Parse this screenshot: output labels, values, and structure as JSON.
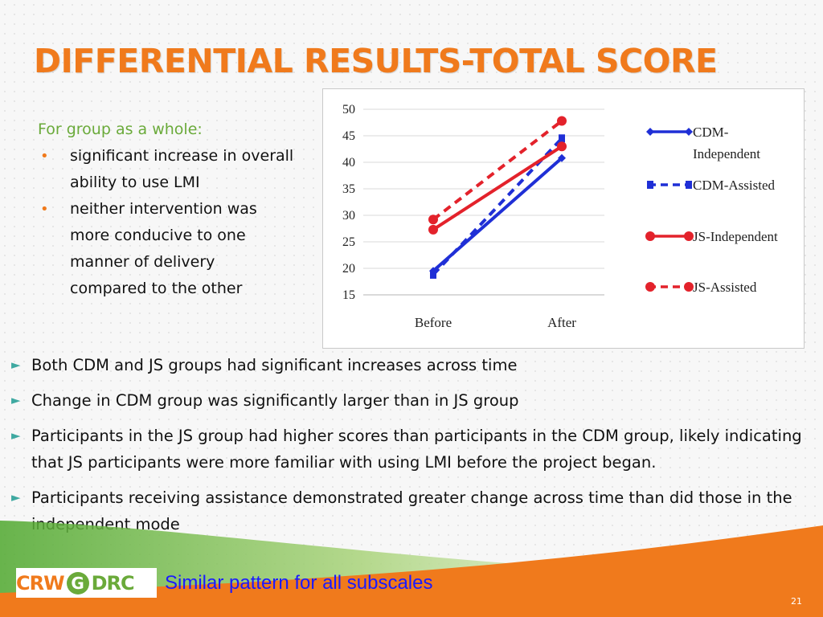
{
  "slide": {
    "title": "DIFFERENTIAL RESULTS-TOTAL SCORE",
    "page_number": "21"
  },
  "left_panel": {
    "heading": "For group as a whole:",
    "bullets": [
      "significant increase in overall ability to use LMI",
      "neither intervention was more conducive to one manner of delivery compared to the other"
    ]
  },
  "main_bullets": [
    "Both CDM and JS groups had significant increases across time",
    "Change in CDM group was significantly larger than in JS group",
    "Participants in the JS group had higher scores than participants in the CDM group, likely indicating that JS participants were more familiar with using LMI before the project began.",
    "Participants receiving assistance demonstrated greater change across time than did those in the independent mode"
  ],
  "footer": {
    "logo_text_left": "CRW",
    "logo_text_mid": "G",
    "logo_text_right": "DRC",
    "note": "Similar pattern for all subscales"
  },
  "colors": {
    "accent_orange": "#f07a1c",
    "accent_green": "#6aaa3a",
    "teal_arrow": "#3fa9a1",
    "note_blue": "#1a1aff"
  },
  "icons": {
    "left_bullet": "bullet-dot",
    "main_bullet": "triangle-right"
  },
  "chart_data": {
    "type": "line",
    "categories": [
      "Before",
      "After"
    ],
    "ylim": [
      15,
      50
    ],
    "yticks": [
      15,
      20,
      25,
      30,
      35,
      40,
      45,
      50
    ],
    "title": "",
    "xlabel": "",
    "ylabel": "",
    "legend_position": "right",
    "series": [
      {
        "name": "CDM-Independent",
        "values": [
          19.5,
          40.8
        ],
        "color": "#1f2fd6",
        "dash": false,
        "marker": "diamond"
      },
      {
        "name": "CDM-Assisted",
        "values": [
          18.8,
          44.5
        ],
        "color": "#1f2fd6",
        "dash": true,
        "marker": "square"
      },
      {
        "name": "JS-Independent",
        "values": [
          27.3,
          43.0
        ],
        "color": "#e3222b",
        "dash": false,
        "marker": "circle"
      },
      {
        "name": "JS-Assisted",
        "values": [
          29.2,
          47.8
        ],
        "color": "#e3222b",
        "dash": true,
        "marker": "circle"
      }
    ]
  }
}
